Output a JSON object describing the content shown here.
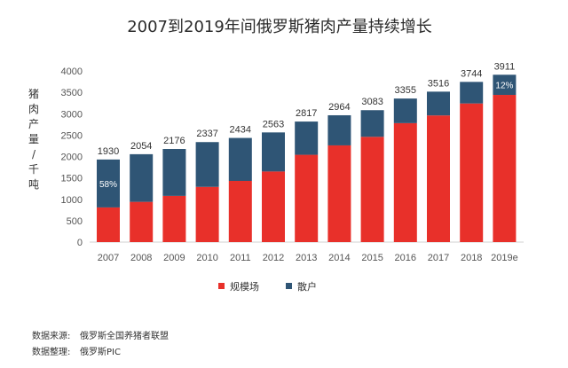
{
  "chart_data": {
    "type": "bar",
    "stacked": true,
    "title": "2007到2019年间俄罗斯猪肉产量持续增长",
    "ylabel": "猪肉产量/千吨",
    "ylim": [
      0,
      4000
    ],
    "yticks": [
      0,
      500,
      1000,
      1500,
      2000,
      2500,
      3000,
      3500,
      4000
    ],
    "categories": [
      "2007",
      "2008",
      "2009",
      "2010",
      "2011",
      "2012",
      "2013",
      "2014",
      "2015",
      "2016",
      "2017",
      "2018",
      "2019e"
    ],
    "series": [
      {
        "name": "规模场",
        "color": "#e8302a",
        "values": [
          810,
          940,
          1080,
          1290,
          1430,
          1650,
          2040,
          2260,
          2460,
          2780,
          2960,
          3240,
          3440
        ]
      },
      {
        "name": "散户",
        "color": "#2f5575",
        "values": [
          1120,
          1114,
          1096,
          1047,
          1004,
          913,
          777,
          704,
          623,
          575,
          556,
          504,
          471
        ]
      }
    ],
    "totals": [
      "1930",
      "2054",
      "2176",
      "2337",
      "2434",
      "2563",
      "2817",
      "2964",
      "3083",
      "3355",
      "3516",
      "3744",
      "3911"
    ],
    "annotations": [
      {
        "category": "2007",
        "text": "58%"
      },
      {
        "category": "2019e",
        "text": "12%"
      }
    ],
    "legend": "bottom",
    "grid": false
  },
  "footer": {
    "source_label": "数据来源:",
    "source_value": "俄罗斯全国养猪者联盟",
    "compiler_label": "数据整理:",
    "compiler_value": "俄罗斯PIC"
  }
}
